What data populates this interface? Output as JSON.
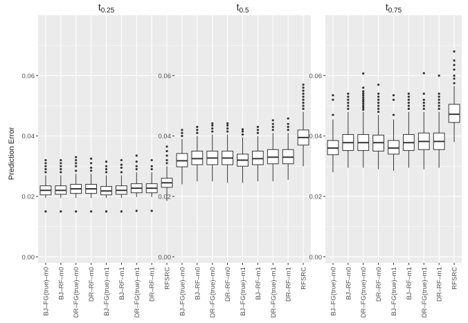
{
  "chart_data": {
    "type": "boxplot",
    "ylabel": "Prediction Error",
    "xlabel": "",
    "ylim": [
      -0.002,
      0.08
    ],
    "y_ticks": [
      0.0,
      0.02,
      0.04,
      0.06
    ],
    "y_tick_labels": [
      "0.00",
      "0.02",
      "0.04",
      "0.06"
    ],
    "grid": true,
    "categories": [
      "BJ–FG(true)–m0",
      "BJ–RF–m0",
      "DR–FG(true)–m0",
      "DR–RF–m0",
      "BJ–FG(true)–m1",
      "BJ–RF–m1",
      "DR–FG(true)–m1",
      "DR–RF–m1",
      "RFSRC"
    ],
    "panels": [
      {
        "title_base": "t",
        "title_sub": "0.25",
        "boxes": [
          {
            "min": 0.0195,
            "q1": 0.0205,
            "median": 0.022,
            "q3": 0.0235,
            "max": 0.027,
            "outliers": [
              0.015,
              0.028,
              0.029,
              0.03,
              0.031,
              0.032
            ]
          },
          {
            "min": 0.0195,
            "q1": 0.0207,
            "median": 0.022,
            "q3": 0.0235,
            "max": 0.027,
            "outliers": [
              0.015,
              0.028,
              0.029,
              0.03,
              0.031,
              0.032
            ]
          },
          {
            "min": 0.0195,
            "q1": 0.021,
            "median": 0.0225,
            "q3": 0.024,
            "max": 0.0275,
            "outliers": [
              0.015,
              0.0285,
              0.03,
              0.031,
              0.032,
              0.033
            ]
          },
          {
            "min": 0.0195,
            "q1": 0.021,
            "median": 0.0225,
            "q3": 0.024,
            "max": 0.0275,
            "outliers": [
              0.015,
              0.0285,
              0.0295,
              0.031,
              0.0325
            ]
          },
          {
            "min": 0.0195,
            "q1": 0.0205,
            "median": 0.0218,
            "q3": 0.0233,
            "max": 0.027,
            "outliers": [
              0.015,
              0.028,
              0.029,
              0.03,
              0.0315
            ]
          },
          {
            "min": 0.0195,
            "q1": 0.0207,
            "median": 0.022,
            "q3": 0.0235,
            "max": 0.027,
            "outliers": [
              0.015,
              0.028,
              0.0295,
              0.0305,
              0.032
            ]
          },
          {
            "min": 0.0198,
            "q1": 0.0212,
            "median": 0.0227,
            "q3": 0.0242,
            "max": 0.028,
            "outliers": [
              0.0152,
              0.029,
              0.03,
              0.0315,
              0.0335
            ]
          },
          {
            "min": 0.0198,
            "q1": 0.0212,
            "median": 0.0227,
            "q3": 0.0242,
            "max": 0.028,
            "outliers": [
              0.0152,
              0.029,
              0.03,
              0.032
            ]
          },
          {
            "min": 0.0185,
            "q1": 0.023,
            "median": 0.0245,
            "q3": 0.026,
            "max": 0.03,
            "outliers": [
              0.031,
              0.032,
              0.0335,
              0.035,
              0.0365
            ]
          }
        ]
      },
      {
        "title_base": "t",
        "title_sub": "0.5",
        "boxes": [
          {
            "min": 0.024,
            "q1": 0.0298,
            "median": 0.0318,
            "q3": 0.0342,
            "max": 0.039,
            "outliers": [
              0.04,
              0.041,
              0.042
            ]
          },
          {
            "min": 0.025,
            "q1": 0.0305,
            "median": 0.0325,
            "q3": 0.035,
            "max": 0.04,
            "outliers": [
              0.041,
              0.042,
              0.043
            ]
          },
          {
            "min": 0.025,
            "q1": 0.0305,
            "median": 0.0327,
            "q3": 0.035,
            "max": 0.0405,
            "outliers": [
              0.0415,
              0.0425,
              0.0435,
              0.0442
            ]
          },
          {
            "min": 0.0245,
            "q1": 0.0305,
            "median": 0.0327,
            "q3": 0.035,
            "max": 0.0405,
            "outliers": [
              0.0415,
              0.0425,
              0.0435,
              0.0442
            ]
          },
          {
            "min": 0.0245,
            "q1": 0.03,
            "median": 0.032,
            "q3": 0.034,
            "max": 0.0395,
            "outliers": [
              0.0405,
              0.0415,
              0.0422
            ]
          },
          {
            "min": 0.025,
            "q1": 0.0305,
            "median": 0.0325,
            "q3": 0.035,
            "max": 0.04,
            "outliers": [
              0.041,
              0.042,
              0.043
            ]
          },
          {
            "min": 0.025,
            "q1": 0.0308,
            "median": 0.033,
            "q3": 0.0355,
            "max": 0.041,
            "outliers": [
              0.042,
              0.043,
              0.044,
              0.0452
            ]
          },
          {
            "min": 0.0255,
            "q1": 0.0308,
            "median": 0.033,
            "q3": 0.0355,
            "max": 0.041,
            "outliers": [
              0.042,
              0.043,
              0.044,
              0.0458
            ]
          },
          {
            "min": 0.03,
            "q1": 0.037,
            "median": 0.0395,
            "q3": 0.042,
            "max": 0.048,
            "outliers": [
              0.049,
              0.05,
              0.051,
              0.052,
              0.053,
              0.054,
              0.055,
              0.056,
              0.057
            ]
          }
        ]
      },
      {
        "title_base": "t",
        "title_sub": "0.75",
        "boxes": [
          {
            "min": 0.028,
            "q1": 0.0338,
            "median": 0.036,
            "q3": 0.0385,
            "max": 0.0455,
            "outliers": [
              0.047,
              0.052,
              0.0535
            ]
          },
          {
            "min": 0.0295,
            "q1": 0.0352,
            "median": 0.0378,
            "q3": 0.0405,
            "max": 0.048,
            "outliers": [
              0.049,
              0.05,
              0.051,
              0.052,
              0.053,
              0.054
            ]
          },
          {
            "min": 0.0295,
            "q1": 0.0352,
            "median": 0.0378,
            "q3": 0.0405,
            "max": 0.048,
            "outliers": [
              0.0487,
              0.0494,
              0.05,
              0.0507,
              0.0514,
              0.052,
              0.0527,
              0.0534,
              0.0541,
              0.0548,
              0.056,
              0.0607
            ]
          },
          {
            "min": 0.029,
            "q1": 0.035,
            "median": 0.0378,
            "q3": 0.0403,
            "max": 0.047,
            "outliers": [
              0.048,
              0.049,
              0.05,
              0.051,
              0.052,
              0.053,
              0.054,
              0.057
            ]
          },
          {
            "min": 0.0285,
            "q1": 0.034,
            "median": 0.036,
            "q3": 0.0385,
            "max": 0.0455,
            "outliers": [
              0.047,
              0.052,
              0.0535
            ]
          },
          {
            "min": 0.0295,
            "q1": 0.0352,
            "median": 0.0378,
            "q3": 0.0405,
            "max": 0.048,
            "outliers": [
              0.049,
              0.05,
              0.051,
              0.052,
              0.053,
              0.054
            ]
          },
          {
            "min": 0.029,
            "q1": 0.0355,
            "median": 0.0382,
            "q3": 0.041,
            "max": 0.048,
            "outliers": [
              0.049,
              0.05,
              0.051,
              0.052,
              0.054,
              0.0608
            ]
          },
          {
            "min": 0.0295,
            "q1": 0.0355,
            "median": 0.0382,
            "q3": 0.041,
            "max": 0.048,
            "outliers": [
              0.049,
              0.05,
              0.051,
              0.052,
              0.053,
              0.054,
              0.06
            ]
          },
          {
            "min": 0.038,
            "q1": 0.0445,
            "median": 0.0472,
            "q3": 0.0505,
            "max": 0.0565,
            "outliers": [
              0.0575,
              0.059,
              0.06,
              0.062,
              0.0635,
              0.065,
              0.068
            ]
          }
        ]
      }
    ]
  },
  "colors": {
    "panel_background": "#ebebeb",
    "gridline": "#ffffff",
    "box_fill": "#ffffff",
    "box_stroke": "#333333",
    "outlier": "#333333",
    "text": "#1a1a1a",
    "tick_text": "#4d4d4d"
  }
}
